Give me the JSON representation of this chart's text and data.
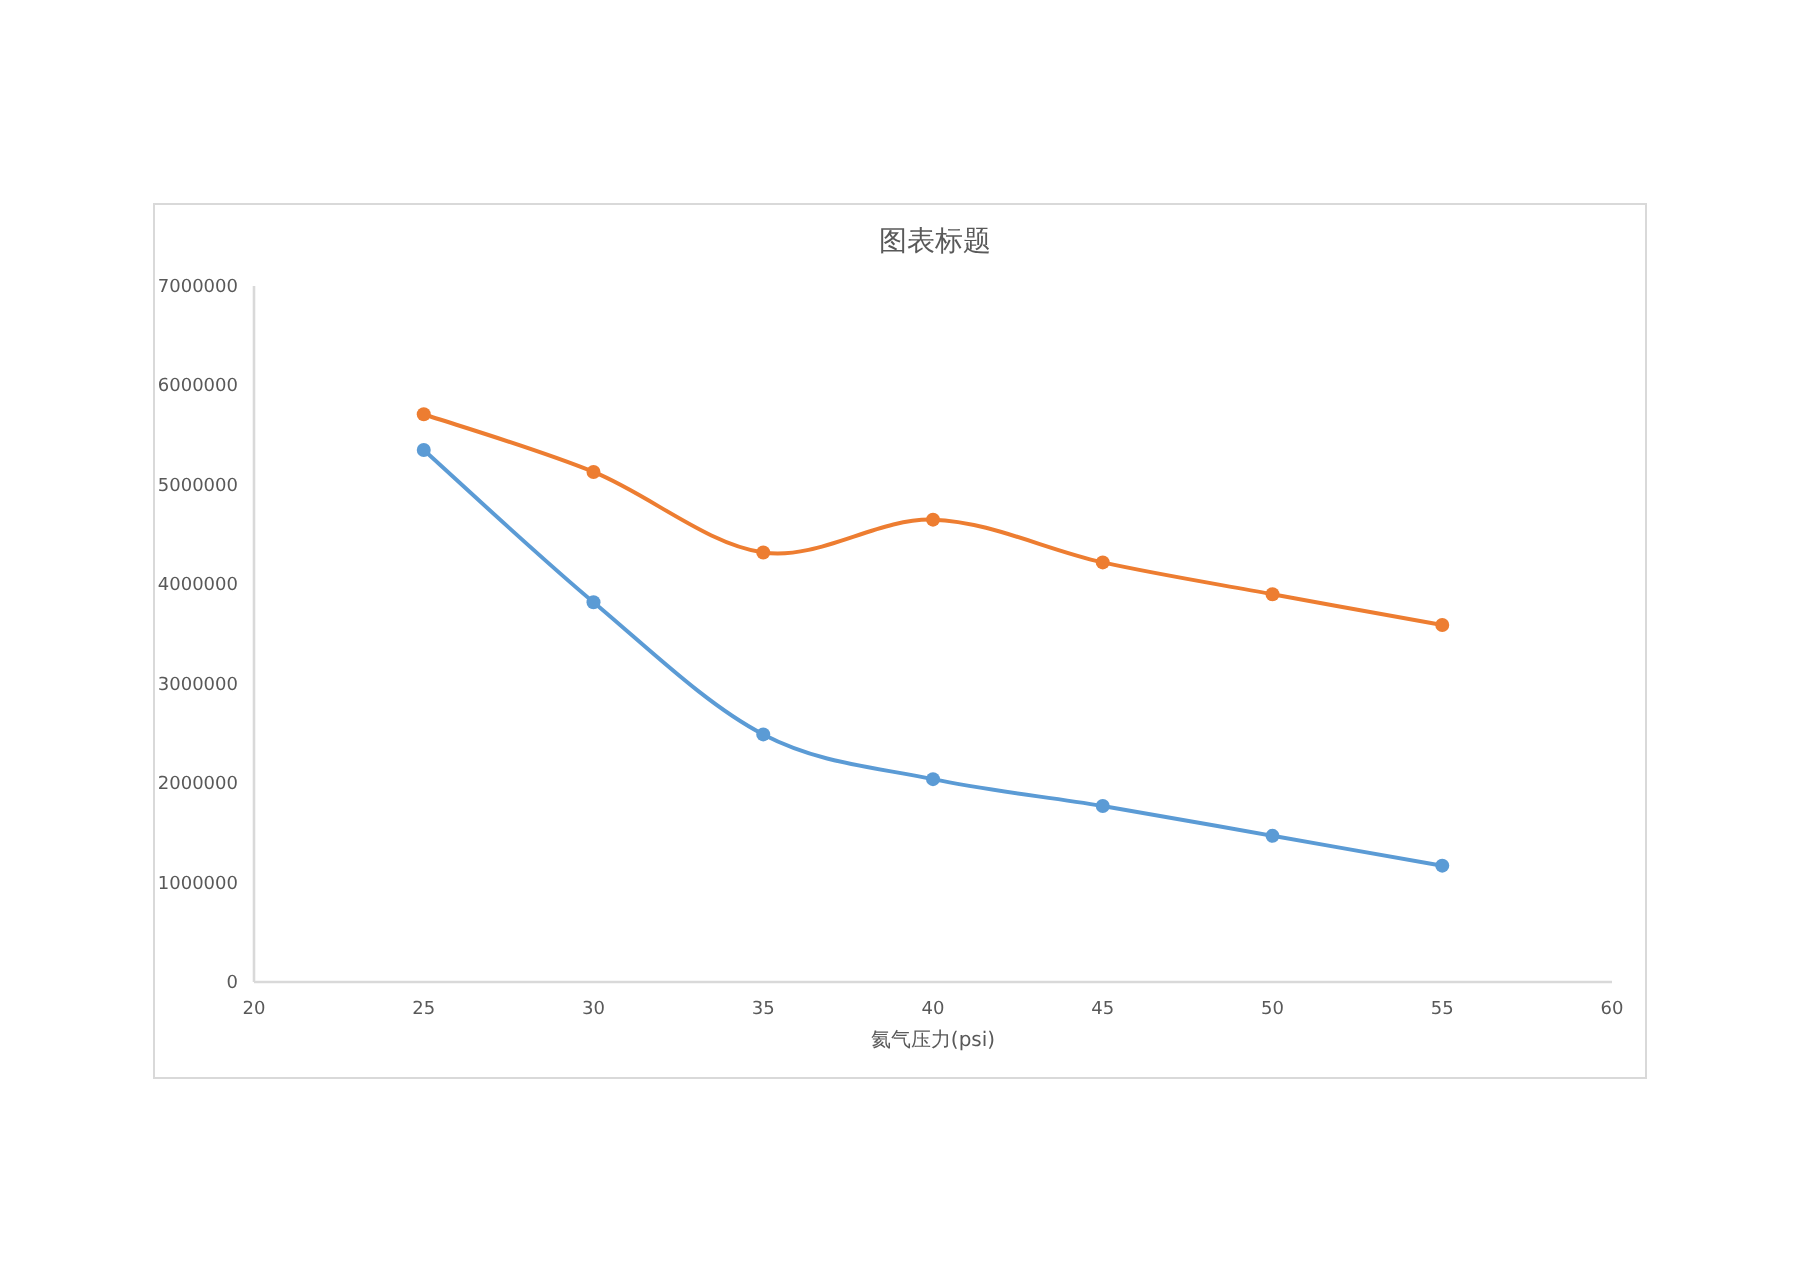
{
  "chart_data": {
    "type": "line",
    "title": "图表标题",
    "xlabel": "氦气压力(psi)",
    "x": [
      25,
      30,
      35,
      40,
      45,
      50,
      55
    ],
    "series": [
      {
        "color": "#5b9bd5",
        "values": [
          5350000,
          3820000,
          2490000,
          2040000,
          1770000,
          1470000,
          1170000
        ]
      },
      {
        "color": "#ed7d31",
        "values": [
          5710000,
          5130000,
          4320000,
          4650000,
          4220000,
          3900000,
          3590000
        ]
      }
    ],
    "xlim": [
      20,
      60
    ],
    "xticks": [
      20,
      25,
      30,
      35,
      40,
      45,
      50,
      55,
      60
    ],
    "ylim": [
      0,
      7000000
    ],
    "yticks": [
      0,
      1000000,
      2000000,
      3000000,
      4000000,
      5000000,
      6000000,
      7000000
    ],
    "grid": false,
    "marker": "circle",
    "line_style": "solid"
  }
}
